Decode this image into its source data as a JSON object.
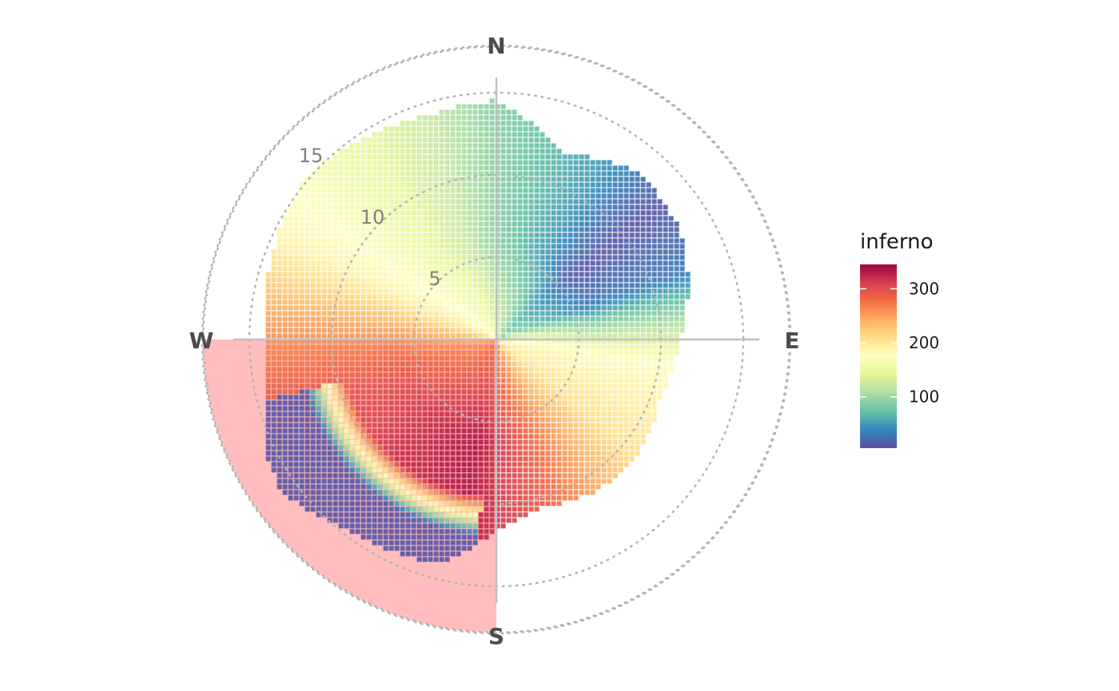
{
  "chart_data": {
    "type": "heatmap",
    "coordinate_system": "polar",
    "compass_labels": {
      "north": "N",
      "east": "E",
      "south": "S",
      "west": "W"
    },
    "radial_axis": {
      "ticks": [
        5,
        10,
        15
      ],
      "tick_labels": [
        "5",
        "10",
        "15"
      ],
      "range": [
        0,
        20
      ],
      "grid": "dotted"
    },
    "highlight_sector": {
      "from_bearing_deg": 180,
      "to_bearing_deg": 270,
      "radius": 17.8,
      "color": "#ffbdbd"
    },
    "legend": {
      "title": "inferno",
      "placement": "right",
      "range": [
        5,
        345
      ],
      "ticks": [
        100,
        200,
        300
      ],
      "tick_labels": [
        "100",
        "200",
        "300"
      ],
      "palette": [
        "#5e4fa2",
        "#3288bd",
        "#66c2a5",
        "#abdda4",
        "#e6f598",
        "#ffffbf",
        "#fee08b",
        "#fdae61",
        "#f46d43",
        "#d53e4f",
        "#9e0142"
      ]
    },
    "value_field_note": "",
    "boundary": [
      {
        "bearing": 0,
        "r": 14.5
      },
      {
        "bearing": 20,
        "r": 12.0
      },
      {
        "bearing": 40,
        "r": 13.3
      },
      {
        "bearing": 60,
        "r": 13.0
      },
      {
        "bearing": 75,
        "r": 12.1
      },
      {
        "bearing": 90,
        "r": 11.2
      },
      {
        "bearing": 110,
        "r": 10.6
      },
      {
        "bearing": 130,
        "r": 11.2
      },
      {
        "bearing": 150,
        "r": 11.0
      },
      {
        "bearing": 165,
        "r": 10.6
      },
      {
        "bearing": 180,
        "r": 11.6
      },
      {
        "bearing": 195,
        "r": 14.2
      },
      {
        "bearing": 215,
        "r": 14.5
      },
      {
        "bearing": 235,
        "r": 16.0
      },
      {
        "bearing": 255,
        "r": 15.0
      },
      {
        "bearing": 270,
        "r": 14.2
      },
      {
        "bearing": 290,
        "r": 14.5
      },
      {
        "bearing": 310,
        "r": 15.2
      },
      {
        "bearing": 330,
        "r": 14.5
      },
      {
        "bearing": 345,
        "r": 14.2
      },
      {
        "bearing": 360,
        "r": 14.5
      }
    ],
    "value_by_bearing": [
      {
        "bearing": 0,
        "value": 90
      },
      {
        "bearing": 30,
        "value": 50
      },
      {
        "bearing": 50,
        "value": 10
      },
      {
        "bearing": 70,
        "value": 30
      },
      {
        "bearing": 85,
        "value": 110
      },
      {
        "bearing": 100,
        "value": 180
      },
      {
        "bearing": 130,
        "value": 210
      },
      {
        "bearing": 165,
        "value": 290
      },
      {
        "bearing": 190,
        "value": 335
      },
      {
        "bearing": 220,
        "value": 320
      },
      {
        "bearing": 255,
        "value": 290
      },
      {
        "bearing": 275,
        "value": 250
      },
      {
        "bearing": 295,
        "value": 190
      },
      {
        "bearing": 320,
        "value": 150
      },
      {
        "bearing": 345,
        "value": 120
      },
      {
        "bearing": 360,
        "value": 90
      }
    ],
    "outer_bearing_band": {
      "from_bearing_deg": 185,
      "to_bearing_deg": 255,
      "min_r": 9.5,
      "value": 10
    }
  }
}
